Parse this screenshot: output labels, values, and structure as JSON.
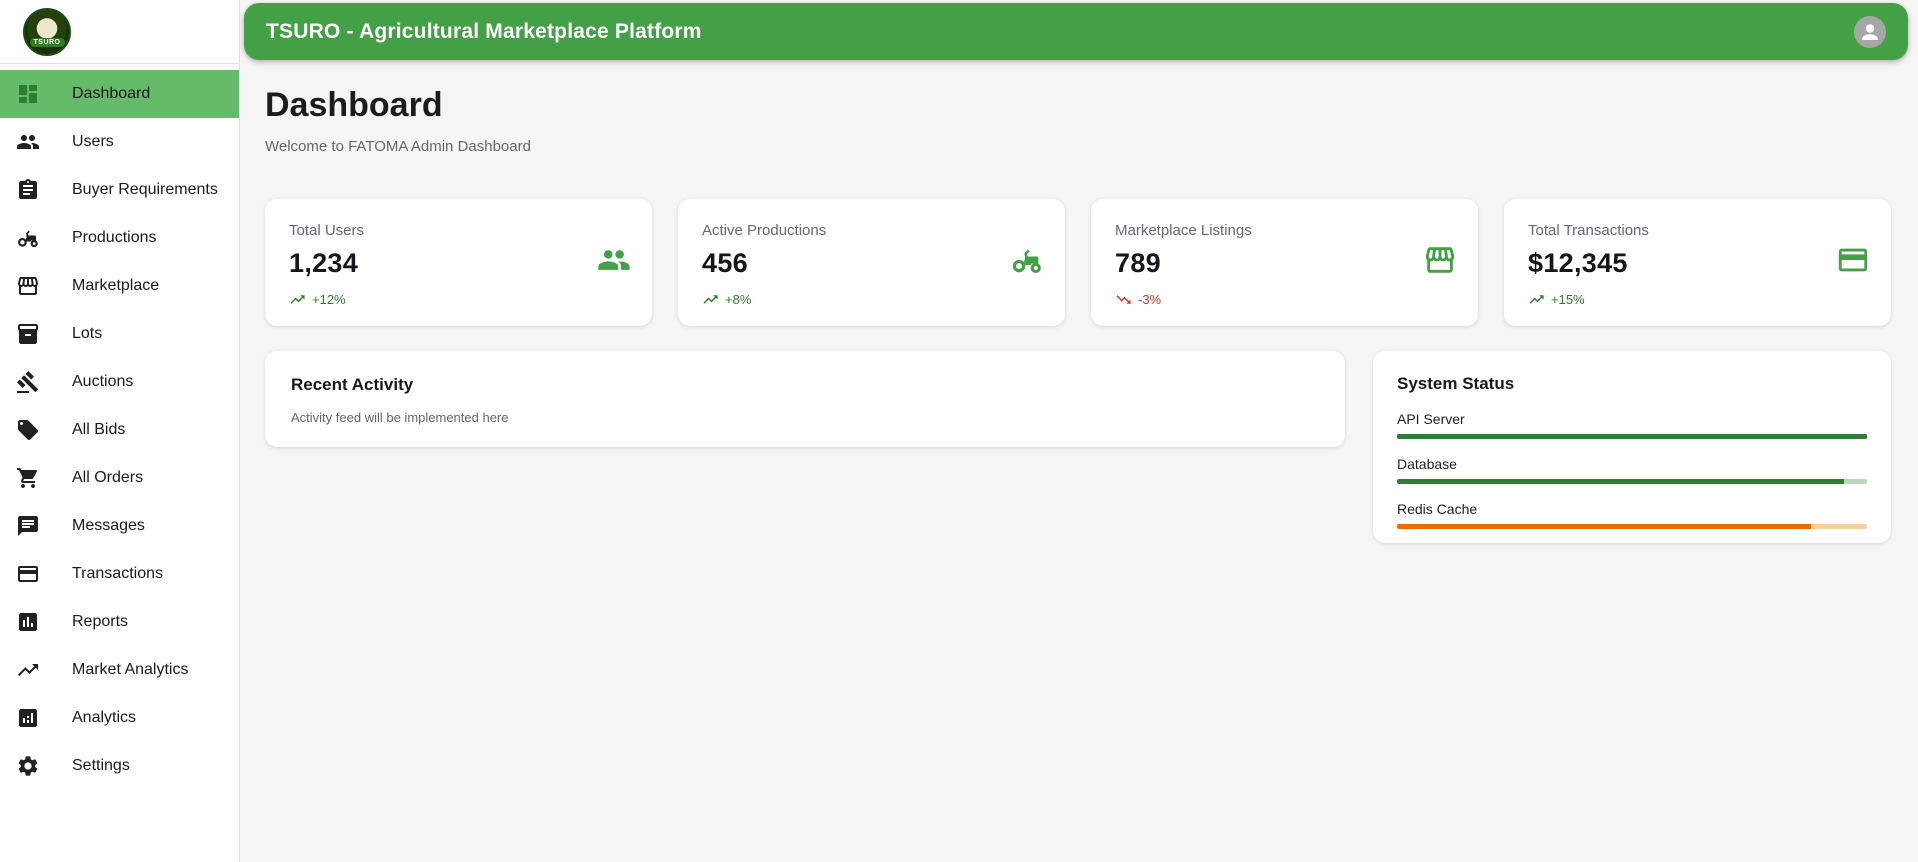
{
  "app": {
    "header_title": "TSURO - Agricultural Marketplace Platform",
    "brand": "TSURO",
    "colors": {
      "header_green": "#43a047",
      "selected_item_green": "#66bb6a",
      "selected_icon_green": "#2e7d32",
      "stat_icon_green": "#43a047",
      "trend_up": "#2e7d32",
      "trend_down": "#d32f2f",
      "warning_orange": "#ed6c02",
      "background": "#f5f5f5"
    }
  },
  "sidebar": {
    "items": [
      {
        "label": "Dashboard",
        "icon": "dashboard-grid-icon",
        "selected": true
      },
      {
        "label": "Users",
        "icon": "people-icon",
        "selected": false
      },
      {
        "label": "Buyer Requirements",
        "icon": "clipboard-icon",
        "selected": false
      },
      {
        "label": "Productions",
        "icon": "tractor-icon",
        "selected": false
      },
      {
        "label": "Marketplace",
        "icon": "storefront-icon",
        "selected": false
      },
      {
        "label": "Lots",
        "icon": "inventory-box-icon",
        "selected": false
      },
      {
        "label": "Auctions",
        "icon": "gavel-icon",
        "selected": false
      },
      {
        "label": "All Bids",
        "icon": "tag-icon",
        "selected": false
      },
      {
        "label": "All Orders",
        "icon": "cart-icon",
        "selected": false
      },
      {
        "label": "Messages",
        "icon": "chat-icon",
        "selected": false
      },
      {
        "label": "Transactions",
        "icon": "credit-card-icon",
        "selected": false
      },
      {
        "label": "Reports",
        "icon": "bar-chart-icon",
        "selected": false
      },
      {
        "label": "Market Analytics",
        "icon": "trending-up-icon",
        "selected": false
      },
      {
        "label": "Analytics",
        "icon": "analytics-icon",
        "selected": false
      },
      {
        "label": "Settings",
        "icon": "gear-icon",
        "selected": false
      }
    ]
  },
  "page": {
    "title": "Dashboard",
    "subtitle": "Welcome to FATOMA Admin Dashboard"
  },
  "stats": {
    "cards": [
      {
        "label": "Total Users",
        "value": "1,234",
        "trend": "+12%",
        "direction": "up",
        "icon": "people-icon"
      },
      {
        "label": "Active Productions",
        "value": "456",
        "trend": "+8%",
        "direction": "up",
        "icon": "tractor-icon"
      },
      {
        "label": "Marketplace Listings",
        "value": "789",
        "trend": "-3%",
        "direction": "down",
        "icon": "storefront-icon"
      },
      {
        "label": "Total Transactions",
        "value": "$12,345",
        "trend": "+15%",
        "direction": "up",
        "icon": "credit-card-icon"
      }
    ]
  },
  "recent_activity": {
    "title": "Recent Activity",
    "body": "Activity feed will be implemented here"
  },
  "system_status": {
    "title": "System Status",
    "services": [
      {
        "name": "API Server",
        "percent": 100,
        "bar_color": "#2e7d32",
        "track_color": "#cfe3cf"
      },
      {
        "name": "Database",
        "percent": 95,
        "bar_color": "#2e7d32",
        "track_color": "#b8d6b9"
      },
      {
        "name": "Redis Cache",
        "percent": 88,
        "bar_color": "#ed6c02",
        "track_color": "#f7cf9f"
      }
    ]
  }
}
